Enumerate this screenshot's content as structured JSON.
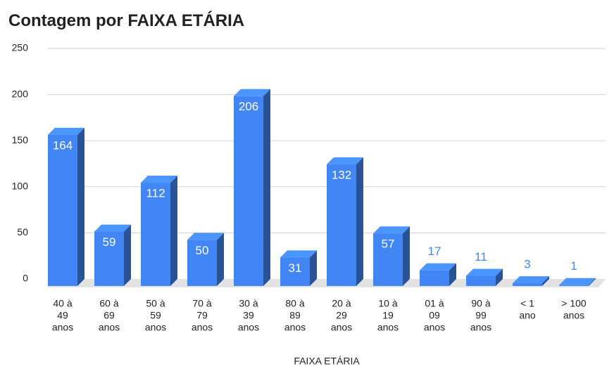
{
  "chart_data": {
    "type": "bar",
    "title": "Contagem por FAIXA ETÁRIA",
    "x_label": "FAIXA ETÁRIA",
    "categories": [
      [
        "40 à",
        "49",
        "anos"
      ],
      [
        "60 à",
        "69",
        "anos"
      ],
      [
        "50 à",
        "59",
        "anos"
      ],
      [
        "70 à",
        "79",
        "anos"
      ],
      [
        "30 à",
        "39",
        "anos"
      ],
      [
        "80 à",
        "89",
        "anos"
      ],
      [
        "20 à",
        "29",
        "anos"
      ],
      [
        "10 à",
        "19",
        "anos"
      ],
      [
        "01 à",
        "09",
        "anos"
      ],
      [
        "90 à",
        "99",
        "anos"
      ],
      [
        "< 1",
        "ano"
      ],
      [
        "> 100",
        "anos"
      ]
    ],
    "values": [
      164,
      59,
      112,
      50,
      206,
      31,
      132,
      57,
      17,
      11,
      3,
      1
    ],
    "color": "#4285f4",
    "ylim": [
      0,
      250
    ],
    "yticks": [
      0,
      50,
      100,
      150,
      200,
      250
    ],
    "grid": true
  }
}
